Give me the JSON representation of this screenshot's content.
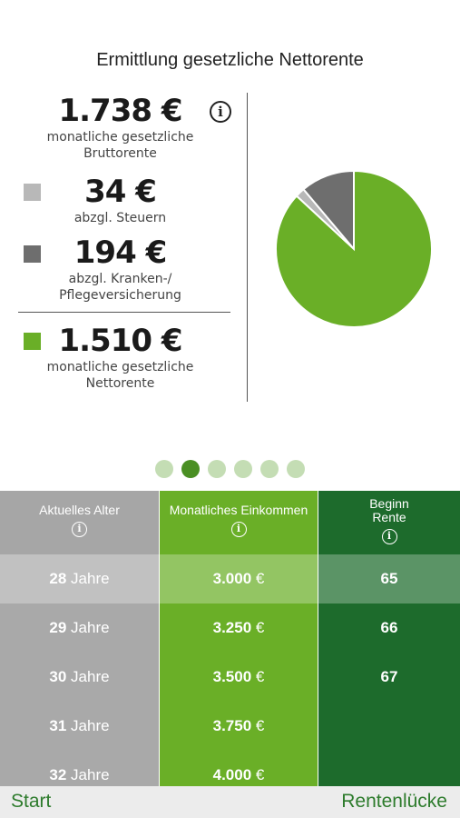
{
  "title": "Ermittlung gesetzliche Nettorente",
  "colors": {
    "brutto": "#ffffff",
    "steuern": "#b8b8b8",
    "kranken": "#6e6e6e",
    "netto": "#6aaf27",
    "col_alter": "#a9a9a9",
    "col_einkommen": "#6aaf27",
    "col_rente": "#1d6b2c",
    "footer_text": "#2d7b2c"
  },
  "summary": {
    "brutto": {
      "amount": "1.738 €",
      "label1": "monatliche gesetzliche",
      "label2": "Bruttorente",
      "info_icon": "info-icon"
    },
    "steuern": {
      "amount": "34 €",
      "label1": "abzgl. Steuern"
    },
    "kranken": {
      "amount": "194 €",
      "label1": "abzgl. Kranken-/",
      "label2": "Pflegeversicherung"
    },
    "netto": {
      "amount": "1.510 €",
      "label1": "monatliche gesetzliche",
      "label2": "Nettorente"
    }
  },
  "chart_data": {
    "type": "pie",
    "title": "",
    "slices": [
      {
        "label": "abzgl. Steuern",
        "value": 34,
        "color": "#b8b8b8"
      },
      {
        "label": "abzgl. Kranken-/Pflegeversicherung",
        "value": 194,
        "color": "#6e6e6e"
      },
      {
        "label": "monatliche gesetzliche Nettorente",
        "value": 1510,
        "color": "#6aaf27"
      }
    ]
  },
  "pager": {
    "count": 6,
    "active_index": 1
  },
  "table": {
    "headers": {
      "alter": "Aktuelles Alter",
      "einkommen": "Monatliches Einkommen",
      "rente_line1": "Beginn",
      "rente_line2": "Rente"
    },
    "rows": [
      {
        "age_num": "28",
        "age_unit": "Jahre",
        "income_num": "3.000",
        "income_unit": "€",
        "rente": "65",
        "highlighted": true
      },
      {
        "age_num": "29",
        "age_unit": "Jahre",
        "income_num": "3.250",
        "income_unit": "€",
        "rente": "66"
      },
      {
        "age_num": "30",
        "age_unit": "Jahre",
        "income_num": "3.500",
        "income_unit": "€",
        "rente": "67"
      },
      {
        "age_num": "31",
        "age_unit": "Jahre",
        "income_num": "3.750",
        "income_unit": "€",
        "rente": ""
      },
      {
        "age_num": "32",
        "age_unit": "Jahre",
        "income_num": "4.000",
        "income_unit": "€",
        "rente": ""
      }
    ]
  },
  "footer": {
    "start": "Start",
    "luecke": "Rentenlücke"
  }
}
